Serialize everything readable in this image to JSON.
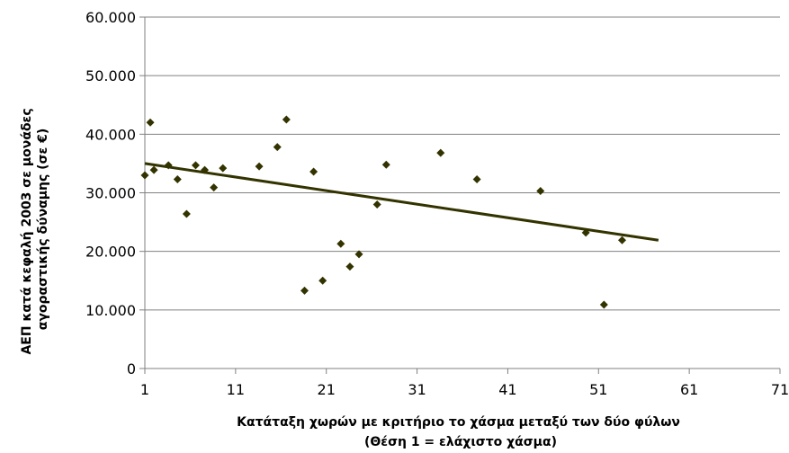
{
  "chart_data": {
    "type": "scatter",
    "title": "",
    "xlabel": "Κατάταξη χωρών με κριτήριο το χάσμα μεταξύ των δύο φύλων",
    "xlabel_line2": "(Θέση 1 = ελάχιστο χάσμα)",
    "ylabel": "ΑΕΠ κατά κεφαλή 2003 σε μονάδες",
    "ylabel_line2": "αγοραστικής δύναμης (σε €)",
    "xlim": [
      1,
      71
    ],
    "ylim": [
      0,
      60000
    ],
    "x_ticks": [
      1,
      11,
      21,
      31,
      41,
      51,
      61,
      71
    ],
    "y_ticks": [
      0,
      10000,
      20000,
      30000,
      40000,
      50000,
      60000
    ],
    "y_tick_labels": [
      "0",
      "10.000",
      "20.000",
      "30.000",
      "40.000",
      "50.000",
      "60.000"
    ],
    "grid": "horizontal",
    "legend": "none",
    "marker": "diamond",
    "marker_color": "#333300",
    "series": [
      {
        "points": [
          {
            "x": 1,
            "y": 33000
          },
          {
            "x": 1.6,
            "y": 42000
          },
          {
            "x": 2,
            "y": 33900
          },
          {
            "x": 3.6,
            "y": 34700
          },
          {
            "x": 4.6,
            "y": 32300
          },
          {
            "x": 5.6,
            "y": 26400
          },
          {
            "x": 6.6,
            "y": 34700
          },
          {
            "x": 7.6,
            "y": 33900
          },
          {
            "x": 8.6,
            "y": 30900
          },
          {
            "x": 9.6,
            "y": 34200
          },
          {
            "x": 13.6,
            "y": 34500
          },
          {
            "x": 15.6,
            "y": 37800
          },
          {
            "x": 16.6,
            "y": 42500
          },
          {
            "x": 18.6,
            "y": 13300
          },
          {
            "x": 19.6,
            "y": 33600
          },
          {
            "x": 20.6,
            "y": 15000
          },
          {
            "x": 22.6,
            "y": 21300
          },
          {
            "x": 23.6,
            "y": 17400
          },
          {
            "x": 24.6,
            "y": 19500
          },
          {
            "x": 26.6,
            "y": 28000
          },
          {
            "x": 27.6,
            "y": 34800
          },
          {
            "x": 33.6,
            "y": 36800
          },
          {
            "x": 37.6,
            "y": 32300
          },
          {
            "x": 44.6,
            "y": 30300
          },
          {
            "x": 49.6,
            "y": 23200
          },
          {
            "x": 51.6,
            "y": 10900
          },
          {
            "x": 53.6,
            "y": 21900
          }
        ]
      }
    ],
    "trendline": {
      "type": "linear",
      "x": [
        1,
        57.6
      ],
      "y": [
        35000,
        21900
      ],
      "color": "#333300"
    }
  }
}
